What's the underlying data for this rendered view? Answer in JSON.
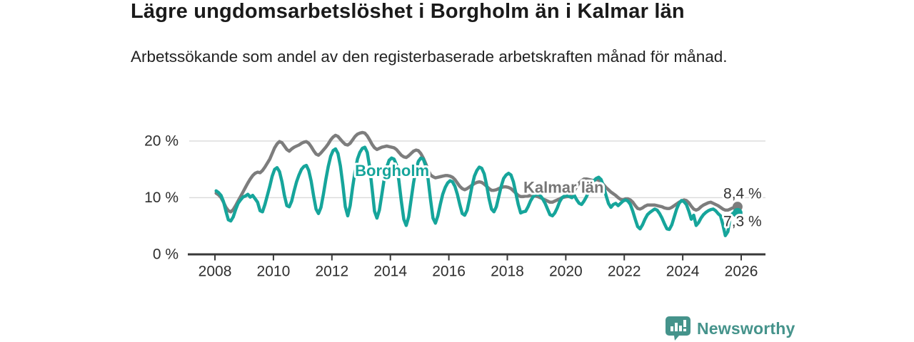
{
  "header": {
    "title": "Lägre ungdomsarbetslöshet i Borgholm än i Kalmar län",
    "subtitle": "Arbetssökande som andel av den registerbaserade arbetskraften månad för månad."
  },
  "footer": {
    "brand": "Newsworthy",
    "brand_color": "#45938b"
  },
  "chart_data": {
    "type": "line",
    "frequency": "monthly",
    "x_start_year": 2008,
    "x_end": "2025-11",
    "grid": "horizontal-only",
    "legend_position": "inline-labels",
    "xlim": [
      2007.12,
      2026.83
    ],
    "ylim": [
      0,
      22.5
    ],
    "yticks": [
      {
        "v": 0,
        "label": "0 %"
      },
      {
        "v": 10,
        "label": "10 %"
      },
      {
        "v": 20,
        "label": "20 %"
      }
    ],
    "xticks": [
      {
        "v": 2008,
        "label": "2008"
      },
      {
        "v": 2010,
        "label": "2010"
      },
      {
        "v": 2012,
        "label": "2012"
      },
      {
        "v": 2014,
        "label": "2014"
      },
      {
        "v": 2016,
        "label": "2016"
      },
      {
        "v": 2018,
        "label": "2018"
      },
      {
        "v": 2020,
        "label": "2020"
      },
      {
        "v": 2022,
        "label": "2022"
      },
      {
        "v": 2024,
        "label": "2024"
      },
      {
        "v": 2026,
        "label": "2026"
      }
    ],
    "series": [
      {
        "name": "Kalmar län",
        "color": "#7d7d7d",
        "end_dot": true,
        "end_value_label": "8,4 %",
        "values": [
          10.8,
          10.5,
          10.0,
          9.2,
          8.3,
          7.7,
          7.5,
          7.9,
          8.6,
          9.4,
          10.2,
          11.0,
          11.8,
          12.6,
          13.3,
          13.9,
          14.3,
          14.5,
          14.4,
          14.8,
          15.4,
          16.1,
          16.8,
          17.8,
          18.8,
          19.5,
          19.9,
          19.7,
          19.1,
          18.5,
          18.2,
          18.6,
          18.9,
          19.1,
          19.3,
          19.6,
          19.8,
          19.9,
          19.6,
          19.0,
          18.3,
          17.7,
          17.5,
          17.9,
          18.4,
          18.9,
          19.5,
          20.2,
          20.7,
          21.0,
          20.8,
          20.3,
          19.8,
          19.4,
          19.3,
          19.6,
          20.2,
          20.8,
          21.2,
          21.4,
          21.5,
          21.4,
          20.9,
          20.2,
          19.4,
          18.8,
          18.5,
          18.7,
          18.9,
          19.0,
          19.1,
          19.0,
          18.9,
          18.8,
          18.5,
          18.0,
          17.5,
          17.2,
          17.1,
          17.4,
          17.8,
          18.2,
          18.4,
          18.3,
          17.8,
          17.0,
          16.0,
          14.9,
          14.0,
          13.7,
          13.5,
          13.6,
          13.7,
          13.8,
          13.9,
          13.9,
          13.8,
          13.6,
          13.2,
          12.6,
          12.0,
          11.6,
          11.4,
          11.6,
          11.9,
          12.2,
          12.5,
          12.7,
          12.8,
          12.7,
          12.4,
          12.0,
          11.6,
          11.3,
          11.3,
          11.4,
          11.6,
          11.8,
          11.9,
          11.9,
          11.8,
          11.6,
          11.2,
          10.8,
          10.4,
          10.2,
          10.2,
          10.3,
          10.3,
          10.4,
          10.4,
          10.3,
          10.2,
          10.0,
          9.8,
          9.6,
          9.4,
          9.2,
          9.2,
          9.4,
          9.6,
          9.8,
          10.0,
          10.1,
          10.2,
          10.2,
          10.4,
          11.2,
          12.0,
          12.6,
          13.0,
          13.3,
          13.3,
          13.2,
          13.1,
          13.0,
          13.2,
          13.1,
          12.8,
          12.3,
          11.8,
          11.4,
          11.0,
          10.7,
          10.4,
          10.0,
          9.7,
          9.6,
          9.8,
          9.8,
          9.6,
          9.2,
          8.6,
          8.1,
          8.0,
          8.2,
          8.5,
          8.7,
          8.7,
          8.7,
          8.7,
          8.6,
          8.5,
          8.4,
          8.2,
          8.1,
          8.1,
          8.3,
          8.6,
          8.9,
          9.2,
          9.4,
          9.6,
          9.5,
          9.1,
          8.5,
          8.0,
          7.8,
          8.0,
          8.4,
          8.7,
          8.9,
          9.1,
          9.2,
          9.0,
          8.8,
          8.6,
          8.3,
          8.0,
          7.8,
          7.8,
          8.0,
          8.2,
          8.2,
          8.4
        ]
      },
      {
        "name": "Borgholm",
        "color": "#16a59b",
        "end_dot": true,
        "end_value_label": "7,3 %",
        "values": [
          11.2,
          10.9,
          10.4,
          9.3,
          7.6,
          6.1,
          5.9,
          6.6,
          7.9,
          9.0,
          9.6,
          10.1,
          10.3,
          10.6,
          10.1,
          10.4,
          9.8,
          9.2,
          7.7,
          7.5,
          8.8,
          10.4,
          12.0,
          13.8,
          15.0,
          15.3,
          14.6,
          12.8,
          10.4,
          8.6,
          8.4,
          9.4,
          11.2,
          12.8,
          14.0,
          15.0,
          15.5,
          15.7,
          14.8,
          12.9,
          10.3,
          8.0,
          7.2,
          8.3,
          10.6,
          13.2,
          15.5,
          17.3,
          18.3,
          18.6,
          17.8,
          15.6,
          12.2,
          8.4,
          6.8,
          8.6,
          11.8,
          14.6,
          16.8,
          18.0,
          18.7,
          18.9,
          18.0,
          15.4,
          11.6,
          7.6,
          6.4,
          7.8,
          10.6,
          13.4,
          15.4,
          16.6,
          17.0,
          16.8,
          15.8,
          13.0,
          9.4,
          6.2,
          5.1,
          6.6,
          9.6,
          12.6,
          15.0,
          16.4,
          17.0,
          16.8,
          15.6,
          13.2,
          9.6,
          6.4,
          5.5,
          6.8,
          8.8,
          10.6,
          11.8,
          12.6,
          13.0,
          12.8,
          12.0,
          10.6,
          8.8,
          7.2,
          6.9,
          7.8,
          9.8,
          12.0,
          13.8,
          14.8,
          15.4,
          15.2,
          14.2,
          12.2,
          9.8,
          8.0,
          7.5,
          8.4,
          10.2,
          12.0,
          13.4,
          14.0,
          14.3,
          14.0,
          12.8,
          10.8,
          8.8,
          7.3,
          7.5,
          7.6,
          8.4,
          9.4,
          10.1,
          10.5,
          10.6,
          10.4,
          9.8,
          9.0,
          8.0,
          7.0,
          6.8,
          7.3,
          8.2,
          9.3,
          10.0,
          10.3,
          10.4,
          10.2,
          10.0,
          10.4,
          9.6,
          9.0,
          8.8,
          9.4,
          10.2,
          11.2,
          12.2,
          13.0,
          13.4,
          13.6,
          13.2,
          12.0,
          10.4,
          9.0,
          8.3,
          8.8,
          9.0,
          8.6,
          9.0,
          9.4,
          9.6,
          9.4,
          8.8,
          7.6,
          6.2,
          4.9,
          4.5,
          5.2,
          6.2,
          7.0,
          7.4,
          7.7,
          8.0,
          7.8,
          7.2,
          6.4,
          5.4,
          4.5,
          4.4,
          5.2,
          6.6,
          8.0,
          9.0,
          9.5,
          9.3,
          8.8,
          7.6,
          6.2,
          6.9,
          5.1,
          5.6,
          6.4,
          7.0,
          7.4,
          7.7,
          7.9,
          8.0,
          7.7,
          7.2,
          6.8,
          5.2,
          3.3,
          4.0,
          6.6,
          7.2,
          7.0,
          7.3
        ]
      }
    ],
    "annotations": [
      {
        "text": "Borgholm",
        "x": 2012.79,
        "y": 14.8,
        "color": "#16a59b",
        "bold": true,
        "size": 22
      },
      {
        "text": "Kalmar län",
        "x": 2018.55,
        "y": 11.8,
        "color": "#757575",
        "bold": true,
        "size": 22
      },
      {
        "text": "8,4 %",
        "x": 2025.39,
        "y": 10.7,
        "color": "#333333",
        "bold": false,
        "size": 21
      },
      {
        "text": "7,3 %",
        "x": 2025.39,
        "y": 5.8,
        "color": "#333333",
        "bold": false,
        "size": 21
      }
    ],
    "axis_color": "#383838",
    "gridline_color": "#d9d9d9",
    "tick_label_color": "#2e2e2e"
  }
}
